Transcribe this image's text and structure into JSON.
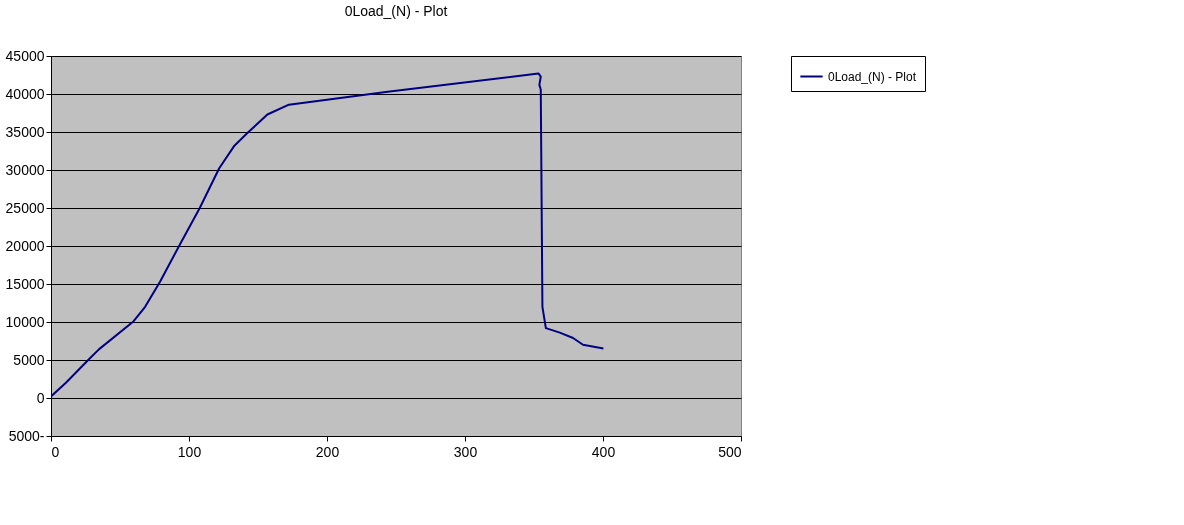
{
  "chart_data": {
    "type": "line",
    "title": "0Load_(N) - Plot",
    "series": [
      {
        "name": "0Load_(N) - Plot",
        "color": "#000080",
        "x": [
          0,
          10.8,
          27.5,
          34.7,
          59.9,
          68.2,
          79,
          93.4,
          107.8,
          121.8,
          132.9,
          142.5,
          156.8,
          172.4,
          244,
          353.2,
          354.9,
          353.9,
          354.9,
          356.1,
          358.6,
          368.7,
          378.3,
          385.5,
          400.3
        ],
        "values": [
          200,
          2000,
          5100,
          6400,
          10100,
          12000,
          15300,
          20200,
          25000,
          30200,
          33200,
          34900,
          37300,
          38600,
          40300,
          42700,
          42300,
          41200,
          40600,
          12000,
          9200,
          8600,
          7900,
          7000,
          6500
        ]
      }
    ],
    "xlim": [
      0,
      500
    ],
    "xticks": [
      0,
      100,
      200,
      300,
      400,
      500
    ],
    "ylim": [
      -5000,
      45000
    ],
    "yticks": [
      {
        "value": -5000,
        "label": "5000-"
      },
      0,
      5000,
      10000,
      15000,
      20000,
      25000,
      30000,
      35000,
      40000,
      45000
    ],
    "grid": "y",
    "legend": "right",
    "marker": "none",
    "line_style": "solid"
  }
}
